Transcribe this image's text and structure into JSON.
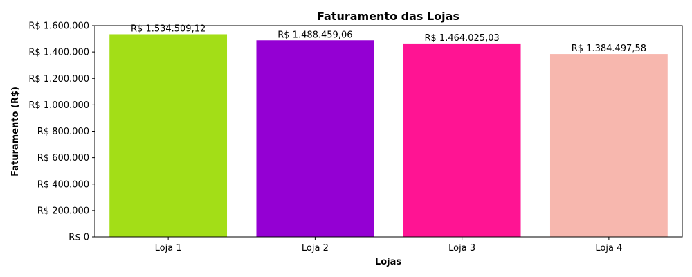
{
  "chart_data": {
    "type": "bar",
    "title": "Faturamento das Lojas",
    "xlabel": "Lojas",
    "ylabel": "Faturamento (R$)",
    "categories": [
      "Loja 1",
      "Loja 2",
      "Loja 3",
      "Loja 4"
    ],
    "values": [
      1534509.12,
      1488459.06,
      1464025.03,
      1384497.58
    ],
    "data_labels": [
      "R$ 1.534.509,12",
      "R$ 1.488.459,06",
      "R$ 1.464.025,03",
      "R$ 1.384.497,58"
    ],
    "colors": [
      "#a3de17",
      "#9400d3",
      "#ff1493",
      "#f7b7ae"
    ],
    "ylim": [
      0,
      1600000
    ],
    "yticks": [
      0,
      200000,
      400000,
      600000,
      800000,
      1000000,
      1200000,
      1400000,
      1600000
    ],
    "ytick_labels": [
      "R$ 0",
      "R$ 200.000",
      "R$ 400.000",
      "R$ 600.000",
      "R$ 800.000",
      "R$ 1.000.000",
      "R$ 1.200.000",
      "R$ 1.400.000",
      "R$ 1.600.000"
    ],
    "grid": false,
    "legend": "none"
  }
}
